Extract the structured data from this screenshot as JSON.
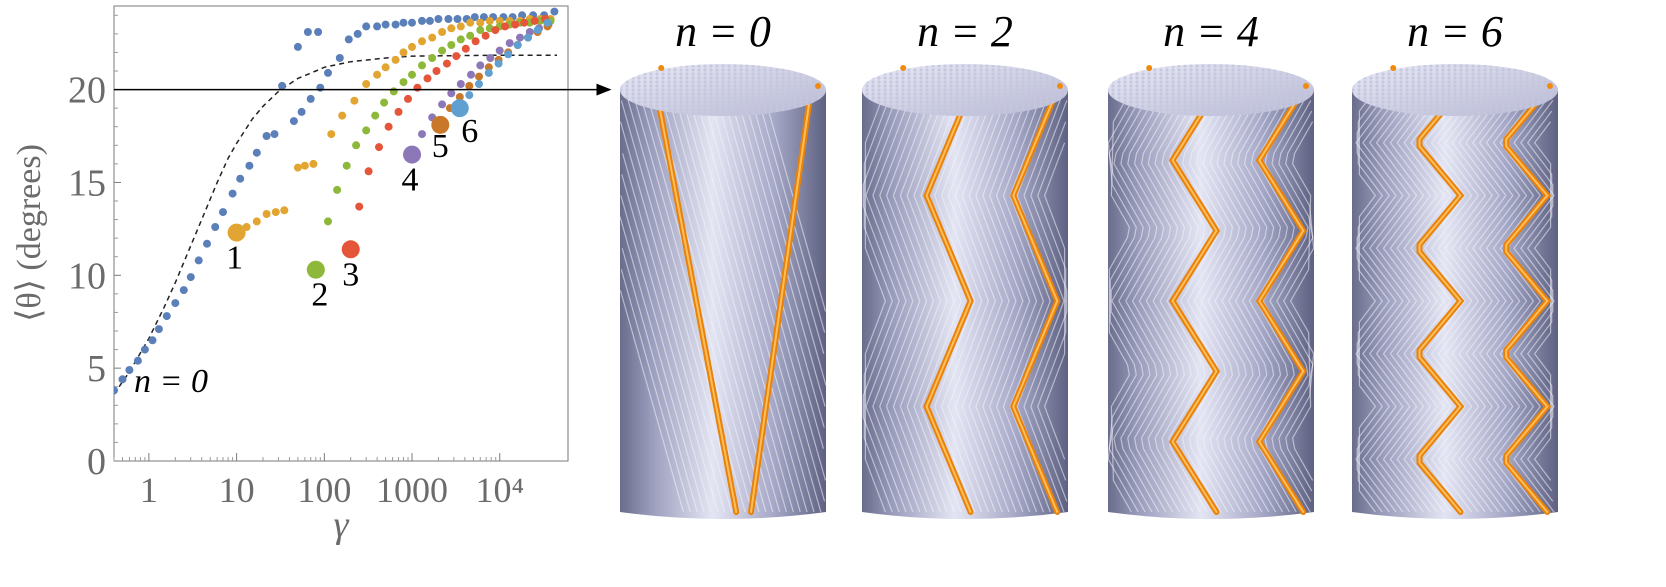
{
  "chart_data": {
    "type": "scatter",
    "xscale": "log",
    "xlim": [
      0.4,
      60000
    ],
    "ylim": [
      0,
      24.5
    ],
    "xlabel": "γ",
    "ylabel": "⟨θ⟩ (degrees)",
    "xticks": [
      {
        "value": 1,
        "label": "1"
      },
      {
        "value": 10,
        "label": "10"
      },
      {
        "value": 100,
        "label": "100"
      },
      {
        "value": 1000,
        "label": "1000"
      },
      {
        "value": 10000,
        "label": "10⁴"
      }
    ],
    "yticks": [
      0,
      5,
      10,
      15,
      20
    ],
    "reference_line": {
      "y": 20
    },
    "annotation": "n = 0",
    "series": [
      {
        "label": "",
        "color": "#5b7fb8",
        "marker": {
          "x": 0.4,
          "y": 3.8
        },
        "points": [
          [
            0.4,
            3.8
          ],
          [
            0.5,
            4.4
          ],
          [
            0.6,
            4.9
          ],
          [
            0.75,
            5.4
          ],
          [
            0.9,
            6.0
          ],
          [
            1.1,
            6.5
          ],
          [
            1.3,
            7.1
          ],
          [
            1.6,
            7.8
          ],
          [
            2,
            8.5
          ],
          [
            2.5,
            9.2
          ],
          [
            3,
            9.9
          ],
          [
            3.7,
            10.8
          ],
          [
            4.6,
            11.7
          ],
          [
            5.7,
            12.6
          ],
          [
            7,
            13.4
          ],
          [
            9,
            14.4
          ],
          [
            11,
            15.2
          ],
          [
            14,
            15.9
          ],
          [
            17,
            16.6
          ],
          [
            22,
            17.5
          ],
          [
            27,
            17.6
          ],
          [
            33,
            20.2
          ],
          [
            45,
            18.3
          ],
          [
            55,
            18.8
          ],
          [
            70,
            19.5
          ],
          [
            90,
            20.1
          ],
          [
            110,
            20.9
          ],
          [
            150,
            21.7
          ],
          [
            190,
            22.7
          ],
          [
            240,
            23.0
          ],
          [
            300,
            23.4
          ],
          [
            400,
            23.4
          ],
          [
            500,
            23.5
          ],
          [
            650,
            23.5
          ],
          [
            800,
            23.6
          ],
          [
            1000,
            23.6
          ],
          [
            1300,
            23.7
          ],
          [
            1600,
            23.7
          ],
          [
            2000,
            23.8
          ],
          [
            2600,
            23.8
          ],
          [
            3300,
            23.8
          ],
          [
            4200,
            23.8
          ],
          [
            5200,
            23.9
          ],
          [
            6600,
            23.9
          ],
          [
            8400,
            23.9
          ],
          [
            11000,
            23.9
          ],
          [
            14000,
            23.9
          ],
          [
            18000,
            24.0
          ],
          [
            24000,
            24.0
          ],
          [
            32000,
            24.0
          ],
          [
            42000,
            24.2
          ],
          [
            50,
            22.3
          ],
          [
            65,
            23.1
          ],
          [
            85,
            23.1
          ]
        ]
      },
      {
        "label": "1",
        "color": "#e3a531",
        "marker": {
          "x": 10,
          "y": 12.3
        },
        "points": [
          [
            10,
            12.3
          ],
          [
            13,
            12.6
          ],
          [
            17,
            12.9
          ],
          [
            22,
            13.3
          ],
          [
            28,
            13.4
          ],
          [
            35,
            13.5
          ],
          [
            50,
            15.8
          ],
          [
            60,
            15.9
          ],
          [
            75,
            16.0
          ],
          [
            120,
            17.6
          ],
          [
            160,
            18.6
          ],
          [
            220,
            19.4
          ],
          [
            300,
            20.3
          ],
          [
            400,
            20.8
          ],
          [
            500,
            21.2
          ],
          [
            650,
            21.6
          ],
          [
            800,
            22.0
          ],
          [
            1000,
            22.3
          ],
          [
            1300,
            22.6
          ],
          [
            1700,
            22.8
          ],
          [
            2200,
            23.1
          ],
          [
            2800,
            23.3
          ],
          [
            3600,
            23.4
          ],
          [
            4600,
            23.6
          ],
          [
            6000,
            23.6
          ],
          [
            7700,
            23.7
          ],
          [
            10000,
            23.7
          ],
          [
            13000,
            23.7
          ],
          [
            17000,
            23.7
          ],
          [
            22000,
            23.8
          ],
          [
            29000,
            23.8
          ],
          [
            38000,
            23.8
          ]
        ]
      },
      {
        "label": "2",
        "color": "#8db83a",
        "marker": {
          "x": 80,
          "y": 10.3
        },
        "points": [
          [
            80,
            10.3
          ],
          [
            110,
            12.9
          ],
          [
            140,
            14.6
          ],
          [
            180,
            15.9
          ],
          [
            230,
            17.0
          ],
          [
            300,
            17.8
          ],
          [
            380,
            18.6
          ],
          [
            480,
            19.3
          ],
          [
            620,
            19.9
          ],
          [
            800,
            20.4
          ],
          [
            1000,
            20.8
          ],
          [
            1300,
            21.3
          ],
          [
            1700,
            21.7
          ],
          [
            2200,
            22.1
          ],
          [
            2800,
            22.4
          ],
          [
            3600,
            22.7
          ],
          [
            4600,
            22.9
          ],
          [
            6000,
            23.2
          ],
          [
            7700,
            23.3
          ],
          [
            10000,
            23.4
          ],
          [
            13000,
            23.5
          ],
          [
            17000,
            23.6
          ],
          [
            22000,
            23.6
          ],
          [
            29000,
            23.7
          ],
          [
            38000,
            23.7
          ]
        ]
      },
      {
        "label": "3",
        "color": "#e4553a",
        "marker": {
          "x": 200,
          "y": 11.4
        },
        "points": [
          [
            200,
            11.4
          ],
          [
            250,
            13.7
          ],
          [
            320,
            15.6
          ],
          [
            420,
            16.9
          ],
          [
            540,
            18.0
          ],
          [
            700,
            18.8
          ],
          [
            900,
            19.5
          ],
          [
            1150,
            20.1
          ],
          [
            1500,
            20.6
          ],
          [
            1900,
            21.0
          ],
          [
            2500,
            21.4
          ],
          [
            3200,
            21.8
          ],
          [
            4100,
            22.2
          ],
          [
            5300,
            22.6
          ],
          [
            6900,
            22.9
          ],
          [
            8900,
            23.2
          ],
          [
            11500,
            23.4
          ],
          [
            15000,
            23.5
          ],
          [
            19000,
            23.6
          ],
          [
            25000,
            23.7
          ],
          [
            33000,
            23.8
          ]
        ]
      },
      {
        "label": "4",
        "color": "#8c78b8",
        "marker": {
          "x": 1000,
          "y": 16.5
        },
        "points": [
          [
            1000,
            16.5
          ],
          [
            1300,
            17.6
          ],
          [
            1700,
            18.5
          ],
          [
            2200,
            19.2
          ],
          [
            2800,
            19.8
          ],
          [
            3600,
            20.3
          ],
          [
            4700,
            20.8
          ],
          [
            6000,
            21.3
          ],
          [
            7800,
            21.7
          ],
          [
            10000,
            22.1
          ],
          [
            13000,
            22.5
          ],
          [
            17000,
            22.8
          ],
          [
            22000,
            23.1
          ],
          [
            28000,
            23.3
          ],
          [
            36000,
            23.5
          ]
        ]
      },
      {
        "label": "5",
        "color": "#c87828",
        "marker": {
          "x": 2100,
          "y": 18.1
        },
        "points": [
          [
            2100,
            18.1
          ],
          [
            2700,
            19.0
          ],
          [
            3500,
            19.6
          ],
          [
            4500,
            20.2
          ],
          [
            5800,
            20.7
          ],
          [
            7500,
            21.2
          ],
          [
            9700,
            21.6
          ],
          [
            12500,
            22.0
          ],
          [
            16000,
            22.4
          ],
          [
            21000,
            22.8
          ],
          [
            27000,
            23.1
          ],
          [
            35000,
            23.4
          ]
        ]
      },
      {
        "label": "6",
        "color": "#5fa0d0",
        "marker": {
          "x": 3500,
          "y": 19.0
        },
        "points": [
          [
            3500,
            19.0
          ],
          [
            4500,
            19.7
          ],
          [
            5800,
            20.3
          ],
          [
            7500,
            20.9
          ],
          [
            9700,
            21.4
          ],
          [
            12500,
            21.9
          ],
          [
            16000,
            22.4
          ],
          [
            21000,
            22.8
          ],
          [
            27000,
            23.2
          ],
          [
            35000,
            23.6
          ]
        ]
      }
    ],
    "analytic_curve": [
      [
        0.4,
        3.6
      ],
      [
        0.6,
        4.8
      ],
      [
        1,
        6.6
      ],
      [
        1.5,
        8.3
      ],
      [
        2,
        9.6
      ],
      [
        3,
        11.6
      ],
      [
        4,
        13.0
      ],
      [
        6,
        15.0
      ],
      [
        8,
        16.3
      ],
      [
        10,
        17.1
      ],
      [
        15,
        18.4
      ],
      [
        20,
        19.1
      ],
      [
        30,
        19.9
      ],
      [
        50,
        20.6
      ],
      [
        80,
        21.0
      ],
      [
        100,
        21.2
      ],
      [
        200,
        21.5
      ],
      [
        500,
        21.7
      ],
      [
        1000,
        21.8
      ],
      [
        10000,
        21.85
      ],
      [
        45000,
        21.85
      ]
    ]
  },
  "panels": [
    {
      "label": "n = 0",
      "n": 0
    },
    {
      "label": "n = 2",
      "n": 2
    },
    {
      "label": "n = 4",
      "n": 4
    },
    {
      "label": "n = 6",
      "n": 6
    }
  ],
  "colors": {
    "fiber": "#b9bbd6",
    "highlight": "#f08a0e",
    "axis": "#6b6b6b",
    "tick_text": "#6b6b6b"
  }
}
